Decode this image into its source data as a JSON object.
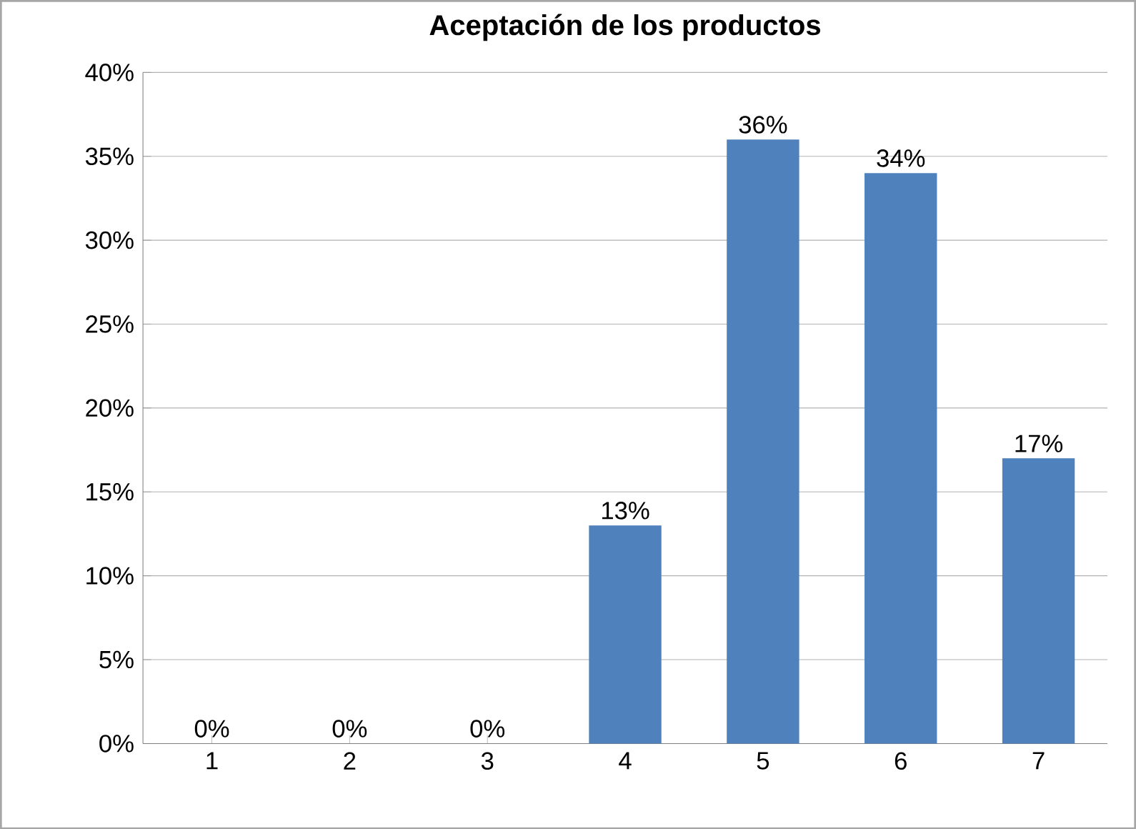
{
  "chart_data": {
    "type": "bar",
    "title": "Aceptación de los productos",
    "categories": [
      "1",
      "2",
      "3",
      "4",
      "5",
      "6",
      "7"
    ],
    "values": [
      0,
      0,
      0,
      13,
      36,
      34,
      17
    ],
    "value_labels": [
      "0%",
      "0%",
      "0%",
      "13%",
      "36%",
      "34%",
      "17%"
    ],
    "color": "#4f81bd",
    "ylim": [
      0,
      40
    ],
    "yticks": [
      {
        "value": 0,
        "label": "0%"
      },
      {
        "value": 5,
        "label": "5%"
      },
      {
        "value": 10,
        "label": "10%"
      },
      {
        "value": 15,
        "label": "15%"
      },
      {
        "value": 20,
        "label": "20%"
      },
      {
        "value": 25,
        "label": "25%"
      },
      {
        "value": 30,
        "label": "30%"
      },
      {
        "value": 35,
        "label": "35%"
      },
      {
        "value": 40,
        "label": "40%"
      }
    ],
    "grid": "y"
  }
}
